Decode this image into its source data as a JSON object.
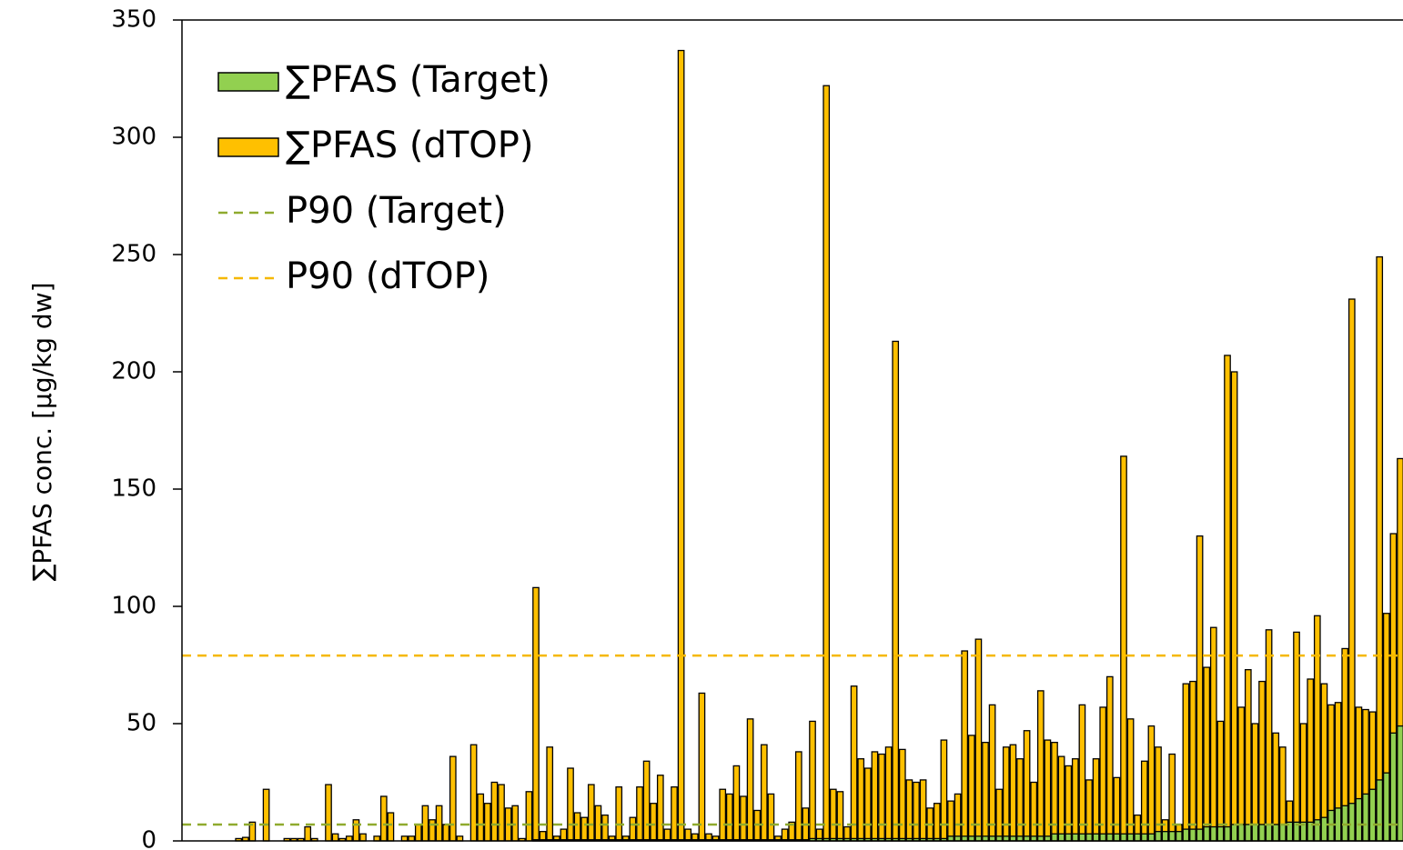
{
  "chart_data": {
    "type": "bar",
    "ylabel": "∑PFAS conc. [µg/kg dw]",
    "ylim": [
      0,
      350
    ],
    "yticks": [
      0,
      50,
      100,
      150,
      200,
      250,
      300,
      350
    ],
    "legend": "upper left",
    "overlap": true,
    "series": [
      {
        "name": "∑PFAS (dTOP)",
        "color": "#ffc000",
        "values": [
          0,
          0,
          0,
          0,
          0,
          0,
          0,
          1,
          1.5,
          8,
          0,
          22,
          0,
          0,
          1,
          1,
          1,
          6,
          1,
          0,
          24,
          3,
          1,
          2,
          9,
          3,
          0,
          2,
          19,
          12,
          0,
          2,
          2,
          7,
          15,
          9,
          15,
          7,
          36,
          2,
          0,
          41,
          20,
          16,
          25,
          24,
          14,
          15,
          1,
          21,
          108,
          4,
          40,
          2,
          5,
          31,
          12,
          10,
          24,
          15,
          11,
          2,
          23,
          2,
          10,
          23,
          34,
          16,
          28,
          5,
          23,
          337,
          5,
          3,
          63,
          3,
          2,
          22,
          20,
          32,
          19,
          52,
          13,
          41,
          20,
          2,
          5,
          8,
          38,
          14,
          51,
          5,
          322,
          22,
          21,
          6,
          66,
          35,
          31,
          38,
          37,
          40,
          213,
          39,
          26,
          25,
          26,
          14,
          16,
          43,
          17,
          20,
          81,
          45,
          86,
          42,
          58,
          22,
          40,
          41,
          35,
          47,
          25,
          64,
          43,
          42,
          36,
          32,
          35,
          58,
          26,
          35,
          57,
          70,
          27,
          164,
          52,
          11,
          34,
          49,
          40,
          9,
          37,
          7,
          67,
          68,
          130,
          74,
          91,
          51,
          207,
          200,
          57,
          73,
          50,
          68,
          90,
          46,
          40,
          17,
          89,
          50,
          69,
          96,
          67,
          58,
          59,
          82,
          231,
          57,
          56,
          55,
          249,
          97,
          131,
          163
        ]
      },
      {
        "name": "∑PFAS (Target)",
        "color": "#92d050",
        "values": [
          0,
          0,
          0,
          0,
          0,
          0,
          0,
          0,
          0,
          0,
          0,
          0,
          0,
          0,
          0,
          0,
          0,
          0,
          0,
          0,
          0,
          0,
          0,
          0,
          0,
          0,
          0,
          0,
          0,
          0,
          0,
          0,
          0,
          0,
          0,
          0,
          0,
          0,
          0,
          0,
          0,
          0,
          0,
          0,
          0,
          0,
          0,
          0,
          0,
          0,
          0.5,
          0.5,
          0.5,
          0.5,
          0.5,
          0.5,
          0.5,
          0.5,
          0.5,
          0.5,
          0.5,
          0.5,
          0.5,
          0.5,
          0.5,
          0.5,
          0.5,
          0.5,
          0.5,
          0.5,
          0.5,
          0.5,
          0.5,
          0.5,
          0.5,
          0.5,
          0.5,
          0.5,
          0.5,
          0.5,
          0.5,
          0.5,
          0.5,
          0.5,
          0.5,
          0.5,
          0.5,
          0.5,
          0.5,
          0.5,
          1,
          1,
          1,
          1,
          1,
          1,
          1,
          1,
          1,
          1,
          1,
          1,
          1,
          1,
          1,
          1,
          1,
          1,
          1,
          1,
          2,
          2,
          2,
          2,
          2,
          2,
          2,
          2,
          2,
          2,
          2,
          2,
          2,
          2,
          2,
          3,
          3,
          3,
          3,
          3,
          3,
          3,
          3,
          3,
          3,
          3,
          3,
          3,
          3,
          3,
          4,
          4,
          4,
          4,
          5,
          5,
          5,
          6,
          6,
          6,
          6,
          7,
          7,
          7,
          7,
          7,
          7,
          7,
          7,
          8,
          8,
          8,
          8,
          9,
          10,
          13,
          14,
          15,
          16,
          18,
          20,
          22,
          26,
          29,
          46,
          49
        ]
      }
    ],
    "lines": [
      {
        "name": "P90 (Target)",
        "value": 7,
        "color": "#8faa2e"
      },
      {
        "name": "P90 (dTOP)",
        "value": 79,
        "color": "#f5b800"
      }
    ]
  }
}
